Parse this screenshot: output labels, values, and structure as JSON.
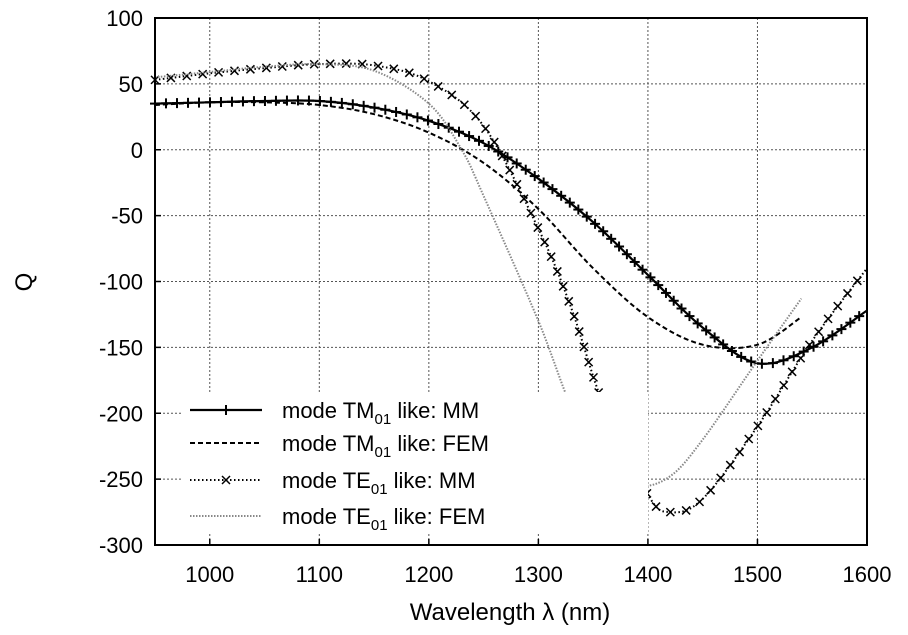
{
  "chart_data": {
    "type": "line",
    "xlabel": "Wavelength λ  (nm)",
    "ylabel": "Q",
    "xlim": [
      950,
      1600
    ],
    "ylim": [
      -300,
      100
    ],
    "xticks": [
      1000,
      1100,
      1200,
      1300,
      1400,
      1500,
      1600
    ],
    "yticks": [
      100,
      50,
      0,
      -50,
      -100,
      -150,
      -200,
      -250,
      -300
    ],
    "grid": true,
    "legend_position": "bottom-left",
    "series": [
      {
        "name": "mode TM01 like: MM",
        "legend_parts": [
          "mode TM",
          "01",
          " like: MM"
        ],
        "style": "solid-plus",
        "color": "#000000",
        "x": [
          950,
          1000,
          1050,
          1100,
          1150,
          1200,
          1250,
          1300,
          1350,
          1400,
          1450,
          1500,
          1550,
          1600
        ],
        "y": [
          35,
          36,
          37,
          37,
          32,
          22,
          5,
          -22,
          -55,
          -95,
          -135,
          -162,
          -150,
          -122
        ]
      },
      {
        "name": "mode TM01 like: FEM",
        "legend_parts": [
          "mode TM",
          "01",
          " like: FEM"
        ],
        "style": "dashed",
        "color": "#000000",
        "x": [
          950,
          1000,
          1050,
          1100,
          1150,
          1200,
          1250,
          1300,
          1350,
          1400,
          1450,
          1500,
          1540
        ],
        "y": [
          34,
          36,
          36,
          34,
          27,
          13,
          -10,
          -45,
          -90,
          -127,
          -148,
          -148,
          -127
        ]
      },
      {
        "name": "mode TE01 like: MM",
        "legend_parts": [
          "mode TE",
          "01",
          " like: MM"
        ],
        "style": "dotted-x",
        "color": "#000000",
        "x": [
          950,
          1000,
          1050,
          1100,
          1150,
          1200,
          1250,
          1300,
          1330,
          1360,
          1400,
          1420,
          1450,
          1500,
          1550,
          1600
        ],
        "y": [
          53,
          58,
          62,
          65,
          64,
          52,
          18,
          -60,
          -120,
          -195,
          -262,
          -275,
          -265,
          -210,
          -145,
          -90
        ]
      },
      {
        "name": "mode TE01 like: FEM",
        "legend_parts": [
          "mode TE",
          "01",
          " like: FEM"
        ],
        "style": "light-dotted",
        "color": "#888888",
        "x": [
          950,
          1000,
          1050,
          1100,
          1150,
          1200,
          1230,
          1250,
          1300,
          1330,
          1360,
          1390,
          1420,
          1450,
          1500,
          1540
        ],
        "y": [
          55,
          59,
          63,
          65,
          60,
          35,
          0,
          -35,
          -130,
          -195,
          -240,
          -255,
          -248,
          -220,
          -160,
          -113
        ]
      }
    ]
  }
}
